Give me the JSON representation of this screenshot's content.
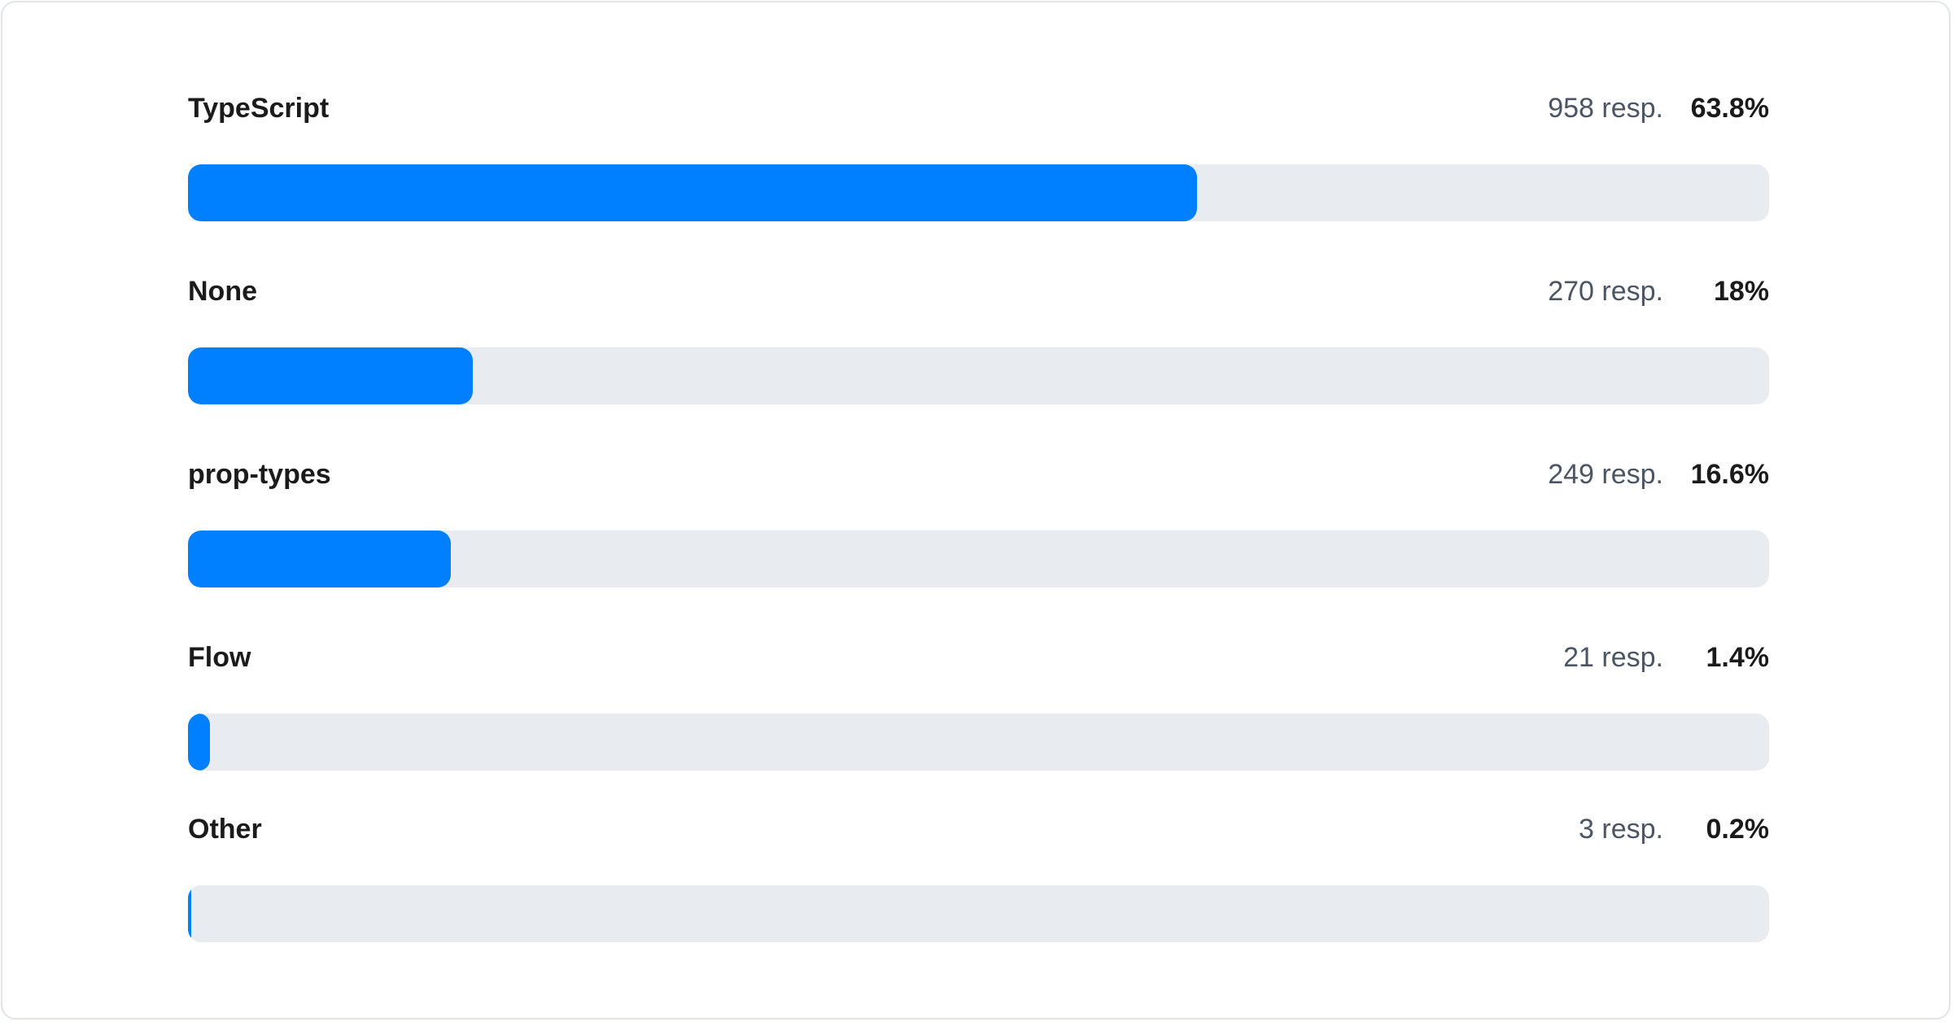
{
  "colors": {
    "bar": "#0080ff",
    "track": "#e8ecf1"
  },
  "chart_data": {
    "type": "bar",
    "orientation": "horizontal",
    "categories": [
      "TypeScript",
      "None",
      "prop-types",
      "Flow",
      "Other"
    ],
    "values": [
      63.8,
      18,
      16.6,
      1.4,
      0.2
    ],
    "responses": [
      958,
      270,
      249,
      21,
      3
    ],
    "xlim": [
      0,
      100
    ],
    "rows": [
      {
        "label": "TypeScript",
        "resp": "958 resp.",
        "pct": "63.8%",
        "value": 63.8
      },
      {
        "label": "None",
        "resp": "270 resp.",
        "pct": "18%",
        "value": 18
      },
      {
        "label": "prop-types",
        "resp": "249 resp.",
        "pct": "16.6%",
        "value": 16.6
      },
      {
        "label": "Flow",
        "resp": "21 resp.",
        "pct": "1.4%",
        "value": 1.4
      },
      {
        "label": "Other",
        "resp": "3 resp.",
        "pct": "0.2%",
        "value": 0.2
      }
    ]
  }
}
